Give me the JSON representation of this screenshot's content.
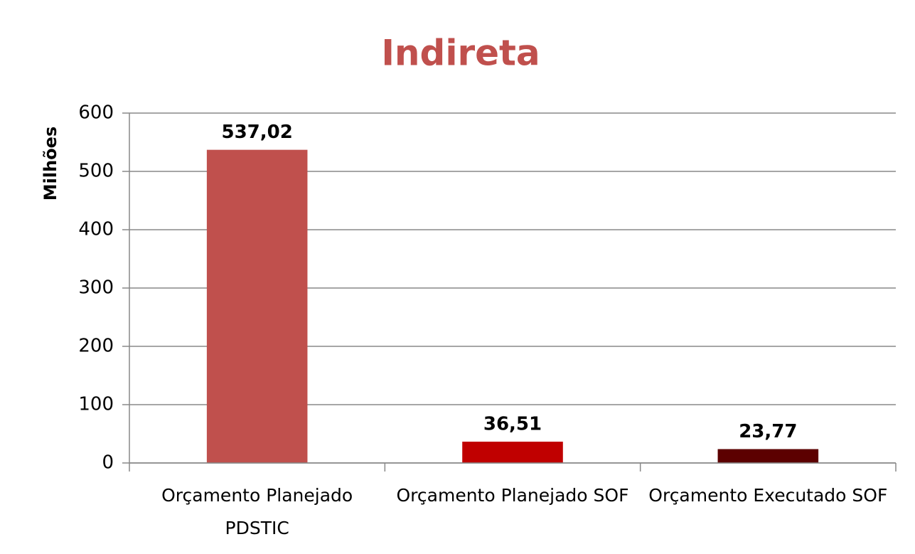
{
  "chart_data": {
    "type": "bar",
    "title": "Indireta",
    "y_label": "Milhões",
    "categories": [
      "Orçamento Planejado PDSTIC",
      "Orçamento Planejado SOF",
      "Orçamento Executado SOF"
    ],
    "values": [
      537.02,
      36.51,
      23.77
    ],
    "value_labels": [
      "537,02",
      "36,51",
      "23,77"
    ],
    "colors": [
      "#c0504d",
      "#c00000",
      "#5c0000"
    ],
    "ylim": [
      0,
      600
    ],
    "yticks": [
      0,
      100,
      200,
      300,
      400,
      500,
      600
    ],
    "grid": true
  }
}
